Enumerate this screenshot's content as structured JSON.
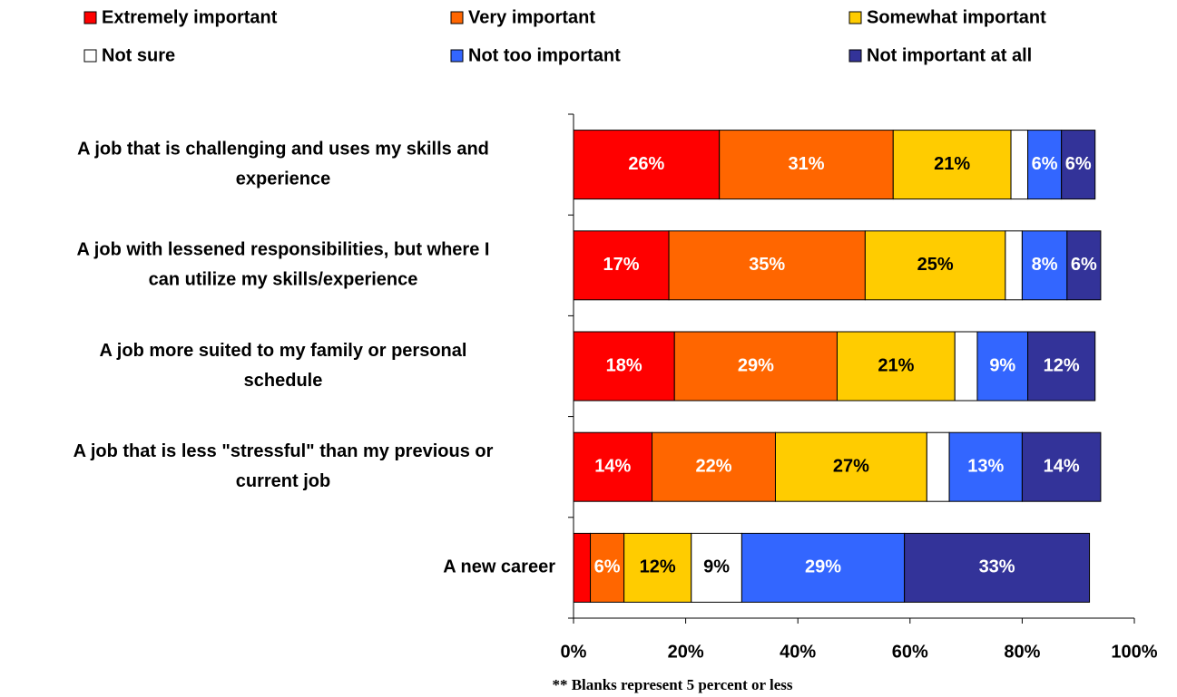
{
  "chart_data": {
    "type": "stacked-barh",
    "categories": [
      [
        "A job that is challenging and uses my skills and",
        "experience"
      ],
      [
        "A job with lessened responsibilities, but where I",
        "can utilize my skills/experience"
      ],
      [
        "A job more suited to my family or personal",
        "schedule"
      ],
      [
        "A job that is less \"stressful\" than my previous or",
        "current job"
      ],
      [
        "A new career"
      ]
    ],
    "series": [
      {
        "name": "Extremely important",
        "color": "#ff0000",
        "values": [
          26,
          17,
          18,
          14,
          3
        ],
        "value_labels": [
          "26%",
          "17%",
          "18%",
          "14%",
          null
        ]
      },
      {
        "name": "Very important",
        "color": "#ff6600",
        "values": [
          31,
          35,
          29,
          22,
          6
        ],
        "value_labels": [
          "31%",
          "35%",
          "29%",
          "22%",
          "6%"
        ]
      },
      {
        "name": "Somewhat important",
        "color": "#ffcc00",
        "values": [
          21,
          25,
          21,
          27,
          12
        ],
        "value_labels": [
          "21%",
          "25%",
          "21%",
          "27%",
          "12%"
        ]
      },
      {
        "name": "Not sure",
        "color": "#ffffff",
        "values": [
          3,
          3,
          4,
          4,
          9
        ],
        "value_labels": [
          null,
          null,
          null,
          null,
          "9%"
        ]
      },
      {
        "name": "Not too important",
        "color": "#3366ff",
        "values": [
          6,
          8,
          9,
          13,
          29
        ],
        "value_labels": [
          "6%",
          "8%",
          "9%",
          "13%",
          "29%"
        ]
      },
      {
        "name": "Not important at all",
        "color": "#333399",
        "values": [
          6,
          6,
          12,
          14,
          33
        ],
        "value_labels": [
          "6%",
          "6%",
          "12%",
          "14%",
          "33%"
        ]
      }
    ],
    "xlim": [
      0,
      100
    ],
    "xticks": [
      {
        "value": 0,
        "label": "0%"
      },
      {
        "value": 20,
        "label": "20%"
      },
      {
        "value": 40,
        "label": "40%"
      },
      {
        "value": 60,
        "label": "60%"
      },
      {
        "value": 80,
        "label": "80%"
      },
      {
        "value": 100,
        "label": "100%"
      }
    ],
    "legend": "top",
    "footnote": "** Blanks represent 5 percent or less"
  }
}
